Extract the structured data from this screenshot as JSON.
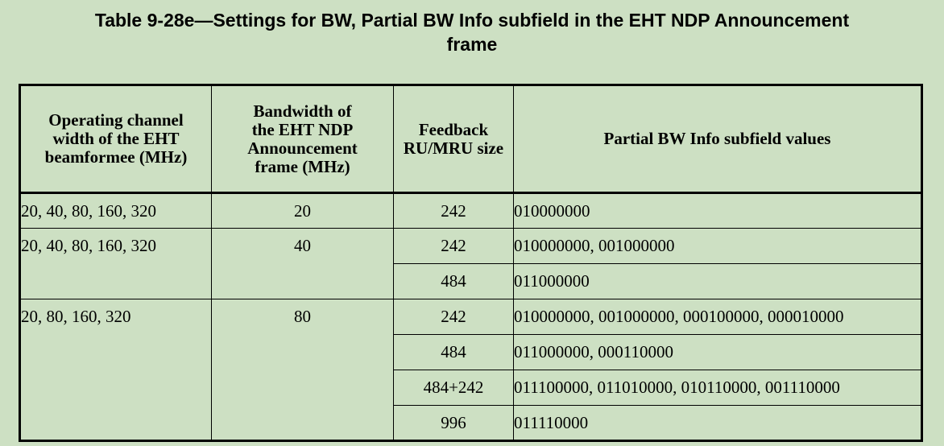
{
  "caption": {
    "line1": "Table 9-28e—Settings for BW, Partial BW Info subfield in the EHT NDP Announcement",
    "line2": "frame"
  },
  "table": {
    "headers": {
      "col1": [
        "Operating channel",
        "width of the EHT",
        "beamformee (MHz)"
      ],
      "col2": [
        "Bandwidth of",
        "the EHT NDP",
        "Announcement",
        "frame (MHz)"
      ],
      "col3": [
        "Feedback",
        "RU/MRU size"
      ],
      "col4": [
        "Partial BW Info subfield values"
      ]
    },
    "groups": [
      {
        "operating_width": "20, 40, 80, 160, 320",
        "bandwidth": "20",
        "rows": [
          {
            "ru_size": "242",
            "values": "010000000"
          }
        ]
      },
      {
        "operating_width": "20, 40, 80, 160, 320",
        "bandwidth": "40",
        "rows": [
          {
            "ru_size": "242",
            "values": "010000000, 001000000"
          },
          {
            "ru_size": "484",
            "values": "011000000"
          }
        ]
      },
      {
        "operating_width": "20, 80, 160, 320",
        "bandwidth": "80",
        "rows": [
          {
            "ru_size": "242",
            "values": "010000000, 001000000, 000100000, 000010000"
          },
          {
            "ru_size": "484",
            "values": "011000000, 000110000"
          },
          {
            "ru_size": "484+242",
            "values": "011100000, 011010000, 010110000, 001110000"
          },
          {
            "ru_size": "996",
            "values": "011110000"
          }
        ]
      }
    ]
  }
}
